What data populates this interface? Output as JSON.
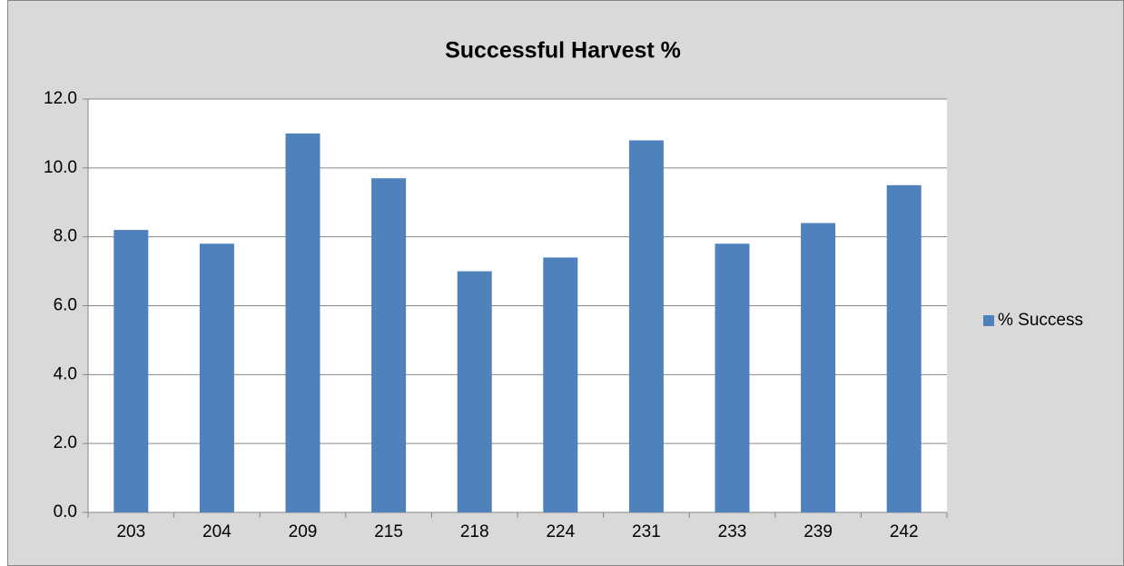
{
  "chart_data": {
    "type": "bar",
    "title": "Successful Harvest %",
    "categories": [
      "203",
      "204",
      "209",
      "215",
      "218",
      "224",
      "231",
      "233",
      "239",
      "242"
    ],
    "series": [
      {
        "name": "% Success",
        "color": "#4f81bd",
        "values": [
          8.2,
          7.8,
          11.0,
          9.7,
          7.0,
          7.4,
          10.8,
          7.8,
          8.4,
          9.5
        ]
      }
    ],
    "ylim": [
      0,
      12
    ],
    "yticks": [
      {
        "value": 0,
        "label": "0.0"
      },
      {
        "value": 2,
        "label": "2.0"
      },
      {
        "value": 4,
        "label": "4.0"
      },
      {
        "value": 6,
        "label": "6.0"
      },
      {
        "value": 8,
        "label": "8.0"
      },
      {
        "value": 10,
        "label": "10.0"
      },
      {
        "value": 12,
        "label": "12.0"
      }
    ],
    "grid": true,
    "legend": "right"
  }
}
